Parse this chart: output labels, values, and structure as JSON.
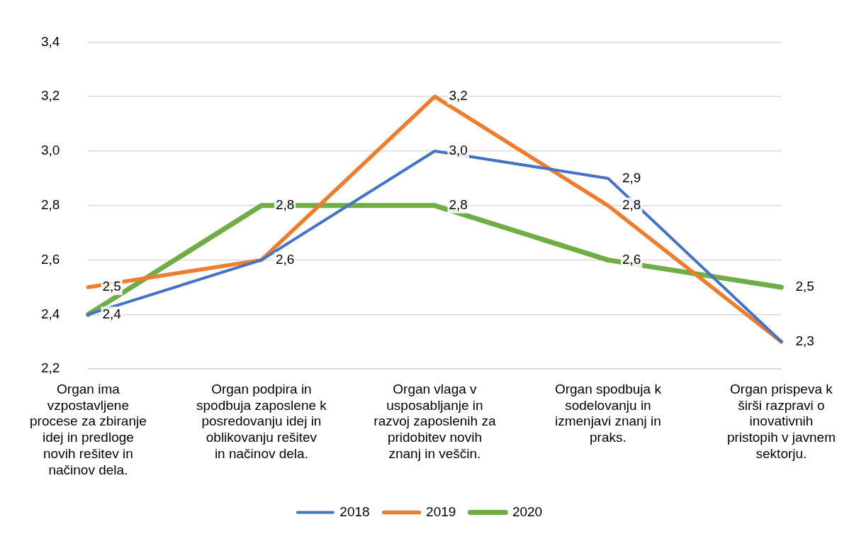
{
  "chart_data": {
    "type": "line",
    "categories": [
      "Organ ima vzpostavljene procese za zbiranje idej in predloge novih rešitev in načinov dela.",
      "Organ podpira in spodbuja zaposlene k posredovanju idej in oblikovanju rešitev in načinov dela.",
      "Organ vlaga v usposabljanje in razvoj zaposlenih za pridobitev novih znanj in veščin.",
      "Organ spodbuja k sodelovanju in izmenjavi znanj in praks.",
      "Organ prispeva k širši razpravi o inovativnih pristopih v javnem sektorju."
    ],
    "series": [
      {
        "name": "2018",
        "color": "#4472c4",
        "values": [
          2.4,
          2.6,
          3.0,
          2.9,
          2.3
        ],
        "value_labels": [
          "2,4",
          "2,6",
          "3,0",
          "2,9",
          "2,3"
        ]
      },
      {
        "name": "2019",
        "color": "#ed7d31",
        "values": [
          2.5,
          2.6,
          3.2,
          2.8,
          2.3
        ],
        "value_labels": [
          "2,5",
          null,
          "3,2",
          "2,8",
          null
        ]
      },
      {
        "name": "2020",
        "color": "#70ad47",
        "values": [
          2.4,
          2.8,
          2.8,
          2.6,
          2.5
        ],
        "value_labels": [
          null,
          "2,8",
          "2,8",
          "2,6",
          "2,5"
        ]
      }
    ],
    "ylim": [
      2.2,
      3.4
    ],
    "yticks": [
      {
        "value": 2.2,
        "label": "2,2"
      },
      {
        "value": 2.4,
        "label": "2,4"
      },
      {
        "value": 2.6,
        "label": "2,6"
      },
      {
        "value": 2.8,
        "label": "2,8"
      },
      {
        "value": 3.0,
        "label": "3,0"
      },
      {
        "value": 3.2,
        "label": "3,2"
      },
      {
        "value": 3.4,
        "label": "3,4"
      }
    ],
    "grid": "y",
    "legend": "bottom",
    "marker": "none",
    "line_style": "solid"
  }
}
